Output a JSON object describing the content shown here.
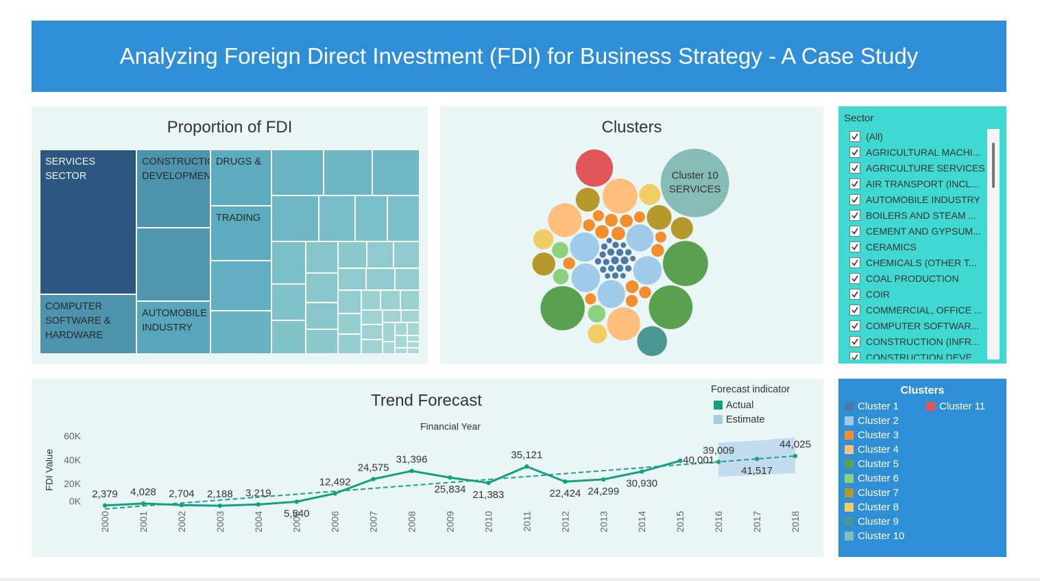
{
  "title": "Analyzing Foreign Direct Investment (FDI) for Business Strategy - A Case Study",
  "chart_data": [
    {
      "type": "treemap",
      "title": "Proportion of FDI",
      "categories": [
        "SERVICES SECTOR",
        "COMPUTER SOFTWARE & HARDWARE",
        "CONSTRUCTION DEVELOPMENT:",
        null,
        "AUTOMOBILE INDUSTRY",
        "DRUGS &",
        "TRADING",
        null,
        null,
        null,
        null,
        null,
        null,
        null,
        null,
        null,
        null,
        null,
        null,
        null,
        null,
        null,
        null,
        null,
        null,
        null,
        null,
        null,
        null,
        null,
        null,
        null,
        null,
        null,
        null,
        null,
        null,
        null,
        null,
        null,
        null,
        null,
        null,
        null,
        null,
        null,
        null,
        null,
        null
      ],
      "values": [
        18,
        7.4,
        7.4,
        7.0,
        5.0,
        4.4,
        4.3,
        3.9,
        3.4,
        3.1,
        2.9,
        2.8,
        2.8,
        2.1,
        1.9,
        1.9,
        1.9,
        1.6,
        1.5,
        1.3,
        1.2,
        1.1,
        1.0,
        1.0,
        0.9,
        0.9,
        0.8,
        0.8,
        0.7,
        0.7,
        0.6,
        0.6,
        0.5,
        0.5,
        0.5,
        0.4,
        0.4,
        0.4,
        0.3,
        0.3,
        0.3,
        0.2,
        0.2,
        0.2,
        0.2,
        0.1,
        0.1,
        0.1,
        0.1
      ],
      "color_range": [
        "#b9e3da",
        "#5aabbf",
        "#2c5781"
      ]
    },
    {
      "type": "packed_bubble",
      "title": "Clusters",
      "legend_title": "Clusters",
      "series": [
        {
          "name": "Cluster 1",
          "color": "#4e79a7",
          "values": [
            3,
            3,
            2.5,
            2.5,
            2.5,
            2,
            2,
            2,
            2,
            2,
            2,
            2,
            2,
            2,
            2,
            1.5,
            1.5,
            1.5,
            1.5,
            1.5
          ]
        },
        {
          "name": "Cluster 2",
          "color": "#a0cbe8",
          "values": [
            42,
            40,
            40,
            38,
            36
          ]
        },
        {
          "name": "Cluster 3",
          "color": "#f28e2b",
          "values": [
            9,
            9,
            8,
            8,
            8,
            8,
            7,
            7,
            7,
            7,
            6,
            6,
            6,
            6
          ]
        },
        {
          "name": "Cluster 4",
          "color": "#ffbe7d",
          "values": [
            60,
            56,
            54
          ]
        },
        {
          "name": "Cluster 5",
          "color": "#59a14f",
          "values": [
            100,
            96,
            94
          ]
        },
        {
          "name": "Cluster 6",
          "color": "#8cd17d",
          "values": [
            15,
            13,
            12
          ]
        },
        {
          "name": "Cluster 7",
          "color": "#b6992d",
          "values": [
            30,
            28,
            26,
            24
          ]
        },
        {
          "name": "Cluster 8",
          "color": "#f1ce63",
          "values": [
            22,
            20,
            18
          ]
        },
        {
          "name": "Cluster 9",
          "color": "#499894",
          "values": [
            44
          ]
        },
        {
          "name": "Cluster 10",
          "color": "#86bcb6",
          "values": [
            230
          ],
          "labels": [
            "SERVICES"
          ]
        },
        {
          "name": "Cluster 11",
          "color": "#e15759",
          "values": [
            68
          ]
        }
      ]
    },
    {
      "type": "line",
      "title": "Trend Forecast",
      "x_label": "Financial Year",
      "y_label": "FDI Value",
      "categories": [
        "2000",
        "2001",
        "2002",
        "2003",
        "2004",
        "2005",
        "2006",
        "2007",
        "2008",
        "2009",
        "2010",
        "2011",
        "2012",
        "2013",
        "2014",
        "2015",
        "2016",
        "2017",
        "2018"
      ],
      "ylim": [
        0,
        60000
      ],
      "yticks": [
        {
          "value": 0,
          "label": "0K"
        },
        {
          "value": 20000,
          "label": "20K"
        },
        {
          "value": 40000,
          "label": "40K"
        },
        {
          "value": 60000,
          "label": "60K"
        }
      ],
      "grid": false,
      "legend": "top-right",
      "legend_title": "Forecast indicator",
      "trend_line": true,
      "trend_color": "#1f9e89",
      "series": [
        {
          "name": "Actual",
          "color": "#12a07f",
          "values": [
            2379,
            4028,
            2704,
            2188,
            3219,
            5540,
            12492,
            24575,
            31396,
            25834,
            21383,
            35121,
            22424,
            24299,
            30930,
            40001,
            null,
            null,
            null
          ],
          "value_labels": [
            "2,379",
            "4,028",
            "2,704",
            "2,188",
            "3,219",
            "5,540",
            "12,492",
            "24,575",
            "31,396",
            "25,834",
            "21,383",
            "35,121",
            "22,424",
            "24,299",
            "30,930",
            "40,001",
            null,
            null,
            null
          ]
        },
        {
          "name": "Estimate",
          "color": "#a6cbe8",
          "values": [
            null,
            null,
            null,
            null,
            null,
            null,
            null,
            null,
            null,
            null,
            null,
            null,
            null,
            null,
            null,
            null,
            39009,
            41517,
            44025
          ],
          "value_labels": [
            null,
            null,
            null,
            null,
            null,
            null,
            null,
            null,
            null,
            null,
            null,
            null,
            null,
            null,
            null,
            null,
            "39,009",
            "41,517",
            "44,025"
          ],
          "upper": [
            null,
            null,
            null,
            null,
            null,
            null,
            null,
            null,
            null,
            null,
            null,
            null,
            null,
            null,
            null,
            null,
            55000,
            57000,
            59500
          ],
          "lower": [
            null,
            null,
            null,
            null,
            null,
            null,
            null,
            null,
            null,
            null,
            null,
            null,
            null,
            null,
            null,
            null,
            26500,
            28000,
            29500
          ]
        }
      ]
    }
  ],
  "sector_filter": {
    "title": "Sector",
    "items": [
      "(All)",
      "AGRICULTURAL MACHI...",
      "AGRICULTURE SERVICES",
      "AIR TRANSPORT (INCL...",
      "AUTOMOBILE INDUSTRY",
      "BOILERS AND STEAM ...",
      "CEMENT AND GYPSUM...",
      "CERAMICS",
      "CHEMICALS (OTHER T...",
      "COAL PRODUCTION",
      "COIR",
      "COMMERCIAL, OFFICE ...",
      "COMPUTER SOFTWAR...",
      "CONSTRUCTION (INFR...",
      "CONSTRUCTION DEVE..."
    ]
  }
}
